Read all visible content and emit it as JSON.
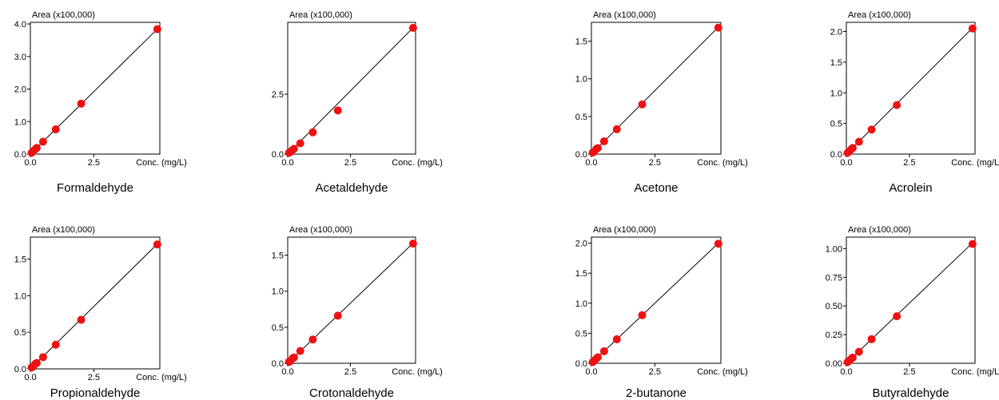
{
  "chart_data": [
    {
      "type": "scatter",
      "title": "Formaldehyde",
      "ylabel": "Area (x100,000)",
      "xlabel": "Conc. (mg/L)",
      "xlim": [
        0,
        5.1
      ],
      "ylim": [
        0,
        4.05
      ],
      "xticks": [
        "0.0",
        "2.5"
      ],
      "xtick_values": [
        0,
        2.5
      ],
      "yticks": [
        "0.0",
        "1.0",
        "2.0",
        "3.0",
        "4.0"
      ],
      "ytick_values": [
        0,
        1,
        2,
        3,
        4
      ],
      "x": [
        0.05,
        0.1,
        0.2,
        0.25,
        0.5,
        1,
        2,
        5
      ],
      "y": [
        0.04,
        0.08,
        0.15,
        0.19,
        0.38,
        0.76,
        1.55,
        3.84
      ],
      "fit": [
        [
          0,
          0
        ],
        [
          5.1,
          3.92
        ]
      ]
    },
    {
      "type": "scatter",
      "title": "Acetaldehyde",
      "ylabel": "Area (x100,000)",
      "xlabel": "Conc. (mg/L)",
      "xlim": [
        0,
        5.1
      ],
      "ylim": [
        0,
        5.5
      ],
      "xticks": [
        "0.0",
        "2.5"
      ],
      "xtick_values": [
        0,
        2.5
      ],
      "yticks": [
        "0.0",
        "2.5"
      ],
      "ytick_values": [
        0,
        2.5
      ],
      "x": [
        0.05,
        0.1,
        0.2,
        0.25,
        0.5,
        1,
        2,
        5
      ],
      "y": [
        0.05,
        0.09,
        0.18,
        0.22,
        0.45,
        0.91,
        1.82,
        5.27
      ],
      "fit": [
        [
          0,
          0
        ],
        [
          5.1,
          5.38
        ]
      ]
    },
    {
      "type": "scatter",
      "title": "Acetone",
      "ylabel": "Area (x100,000)",
      "xlabel": "Conc. (mg/L)",
      "xlim": [
        0,
        5.1
      ],
      "ylim": [
        0,
        1.75
      ],
      "xticks": [
        "0.0",
        "2.5"
      ],
      "xtick_values": [
        0,
        2.5
      ],
      "yticks": [
        "0.0",
        "0.5",
        "1.0",
        "1.5"
      ],
      "ytick_values": [
        0,
        0.5,
        1,
        1.5
      ],
      "x": [
        0.05,
        0.1,
        0.2,
        0.25,
        0.5,
        1,
        2,
        5
      ],
      "y": [
        0.02,
        0.03,
        0.07,
        0.08,
        0.17,
        0.33,
        0.66,
        1.68
      ],
      "fit": [
        [
          0,
          0
        ],
        [
          5.1,
          1.72
        ]
      ]
    },
    {
      "type": "scatter",
      "title": "Acrolein",
      "ylabel": "Area (x100,000)",
      "xlabel": "Conc. (mg/L)",
      "xlim": [
        0,
        5.1
      ],
      "ylim": [
        0,
        2.15
      ],
      "xticks": [
        "0.0",
        "2.5"
      ],
      "xtick_values": [
        0,
        2.5
      ],
      "yticks": [
        "0.0",
        "0.5",
        "1.0",
        "1.5",
        "2.0"
      ],
      "ytick_values": [
        0,
        0.5,
        1,
        1.5,
        2
      ],
      "x": [
        0.05,
        0.1,
        0.2,
        0.25,
        0.5,
        1,
        2,
        5
      ],
      "y": [
        0.02,
        0.04,
        0.08,
        0.1,
        0.2,
        0.4,
        0.8,
        2.05
      ],
      "fit": [
        [
          0,
          0
        ],
        [
          5.1,
          2.1
        ]
      ]
    },
    {
      "type": "scatter",
      "title": "Propionaldehyde",
      "ylabel": "Area (x100,000)",
      "xlabel": "Conc. (mg/L)",
      "xlim": [
        0,
        5.1
      ],
      "ylim": [
        0,
        1.8
      ],
      "xticks": [
        "0.0",
        "2.5"
      ],
      "xtick_values": [
        0,
        2.5
      ],
      "yticks": [
        "0.0",
        "0.5",
        "1.0",
        "1.5"
      ],
      "ytick_values": [
        0,
        0.5,
        1,
        1.5
      ],
      "x": [
        0.05,
        0.1,
        0.2,
        0.25,
        0.5,
        1,
        2,
        5
      ],
      "y": [
        0.02,
        0.03,
        0.07,
        0.08,
        0.16,
        0.33,
        0.67,
        1.7
      ],
      "fit": [
        [
          0,
          0
        ],
        [
          5.1,
          1.74
        ]
      ]
    },
    {
      "type": "scatter",
      "title": "Crotonaldehyde",
      "ylabel": "Area (x100,000)",
      "xlabel": "Conc. (mg/L)",
      "xlim": [
        0,
        5.1
      ],
      "ylim": [
        0,
        1.75
      ],
      "xticks": [
        "0.0",
        "2.5"
      ],
      "xtick_values": [
        0,
        2.5
      ],
      "yticks": [
        "0.0",
        "0.5",
        "1.0",
        "1.5"
      ],
      "ytick_values": [
        0,
        0.5,
        1,
        1.5
      ],
      "x": [
        0.05,
        0.1,
        0.2,
        0.25,
        0.5,
        1,
        2,
        5
      ],
      "y": [
        0.02,
        0.03,
        0.07,
        0.08,
        0.17,
        0.33,
        0.66,
        1.66
      ],
      "fit": [
        [
          0,
          0
        ],
        [
          5.1,
          1.7
        ]
      ]
    },
    {
      "type": "scatter",
      "title": "2-butanone",
      "ylabel": "Area (x100,000)",
      "xlabel": "Conc. (mg/L)",
      "xlim": [
        0,
        5.1
      ],
      "ylim": [
        0,
        2.1
      ],
      "xticks": [
        "0.0",
        "2.5"
      ],
      "xtick_values": [
        0,
        2.5
      ],
      "yticks": [
        "0.0",
        "0.5",
        "1.0",
        "1.5",
        "2.0"
      ],
      "ytick_values": [
        0,
        0.5,
        1,
        1.5,
        2
      ],
      "x": [
        0.05,
        0.1,
        0.2,
        0.25,
        0.5,
        1,
        2,
        5
      ],
      "y": [
        0.02,
        0.04,
        0.08,
        0.1,
        0.2,
        0.4,
        0.8,
        1.99
      ],
      "fit": [
        [
          0,
          0
        ],
        [
          5.1,
          2.04
        ]
      ]
    },
    {
      "type": "scatter",
      "title": "Butyraldehyde",
      "ylabel": "Area (x100,000)",
      "xlabel": "Conc. (mg/L)",
      "xlim": [
        0,
        5.1
      ],
      "ylim": [
        0,
        1.1
      ],
      "xticks": [
        "0.0",
        "2.5"
      ],
      "xtick_values": [
        0,
        2.5
      ],
      "yticks": [
        "0.00",
        "0.25",
        "0.50",
        "0.75",
        "1.00"
      ],
      "ytick_values": [
        0,
        0.25,
        0.5,
        0.75,
        1
      ],
      "x": [
        0.05,
        0.1,
        0.2,
        0.25,
        0.5,
        1,
        2,
        5
      ],
      "y": [
        0.01,
        0.02,
        0.04,
        0.05,
        0.1,
        0.21,
        0.41,
        1.04
      ],
      "fit": [
        [
          0,
          0
        ],
        [
          5.1,
          1.07
        ]
      ]
    }
  ],
  "colors": {
    "point": "#ee1111",
    "line": "#000000",
    "axis": "#000000"
  }
}
